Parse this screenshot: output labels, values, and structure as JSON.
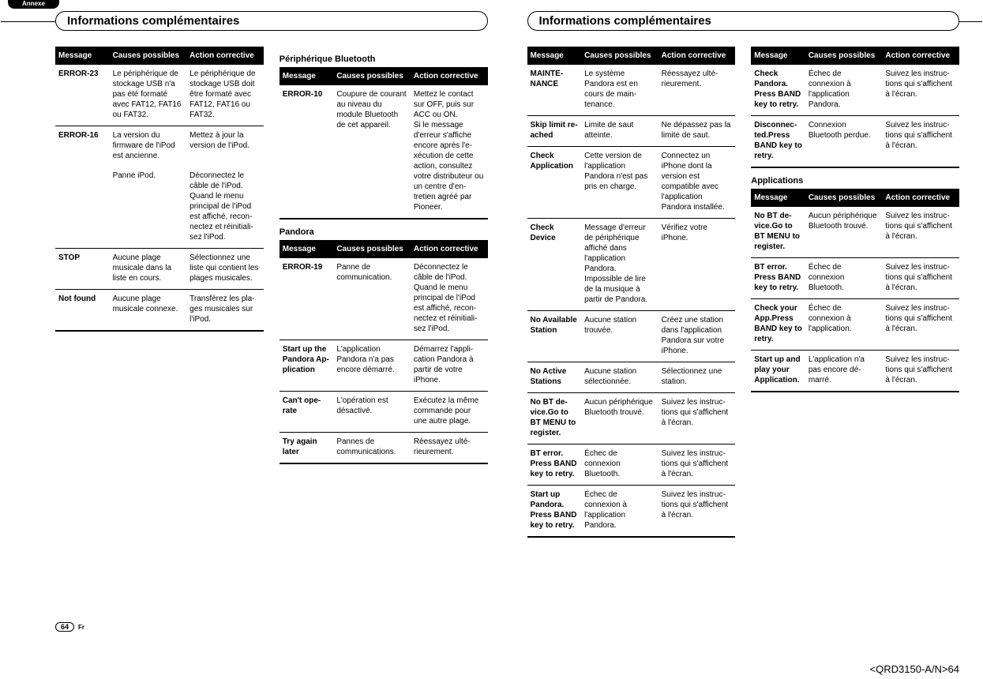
{
  "meta": {
    "annexe": "Annexe",
    "section": "Informations complémentaires",
    "page_no": "64",
    "lang": "Fr",
    "doc_code": "<QRD3150-A/N>64"
  },
  "hdr": {
    "msg": "Message",
    "cause": "Causes possi­bles",
    "action": "Action correc­tive"
  },
  "subs": {
    "bt": "Périphérique Bluetooth",
    "pandora": "Pandora",
    "apps": "Applications"
  },
  "t1": [
    {
      "m": "ERROR-23",
      "c": "Le périphérique de stockage USB n'a pas été formaté avec FAT12, FAT16 ou FAT32.",
      "a": "Le périphérique de stockage USB doit être formaté avec FAT12, FAT16 ou FAT32."
    },
    {
      "m": "ERROR-16",
      "c": "La version du firmware de l'iPod est an­cienne.",
      "a": "Mettez à jour la version de l'iPod.",
      "nb": true
    },
    {
      "m": "",
      "c": "Panne iPod.",
      "a": "Déconnectez le câble de l'iPod. Quand le menu principal de l'iPod est affiché, recon­nectez et réinitiali­sez l'iPod."
    },
    {
      "m": "STOP",
      "c": "Aucune plage musicale dans la liste en cours.",
      "a": "Sélectionnez une liste qui contient les plages musi­cales."
    },
    {
      "m": "Not found",
      "c": "Aucune plage musicale connexe.",
      "a": "Transférez les pla­ges musicales sur l'iPod."
    }
  ],
  "t2": [
    {
      "m": "ERROR-10",
      "c": "Coupure de courant au ni­veau du module Bluetooth de cet appareil.",
      "a": "Mettez le contact sur OFF, puis sur ACC ou ON.\nSi le message d'erreur s'affiche encore après l'e­xécution de cette action, consultez votre distributeur ou un centre d'en­tretien agréé par Pioneer."
    }
  ],
  "t3": [
    {
      "m": "ERROR-19",
      "c": "Panne de communica­tion.",
      "a": "Déconnectez le câble de l'iPod. Quand le menu principal de l'iPod est affiché, recon­nectez et réinitiali­sez l'iPod."
    },
    {
      "m": "Start up the Pandora Ap­plication",
      "c": "L'application Pandora n'a pas encore dé­marré.",
      "a": "Démarrez l'appli­cation Pandora à partir de votre iPhone."
    },
    {
      "m": "Can't ope­rate",
      "c": "L'opération est désactivé.",
      "a": "Exécutez la même commande pour une autre plage."
    },
    {
      "m": "Try again later",
      "c": "Pannes de communica­tions.",
      "a": "Réessayez ulté­rieurement."
    }
  ],
  "t4": [
    {
      "m": "MAINTE­NANCE",
      "c": "Le système Pandora est en cours de main­tenance.",
      "a": "Réessayez ulté­rieurement."
    },
    {
      "m": "Skip limit re­ached",
      "c": "Limite de saut atteinte.",
      "a": "Ne dépassez pas la limite de saut."
    },
    {
      "m": "Check Appli­cation",
      "c": "Cette version de l'application Pandora n'est pas pris en charge.",
      "a": "Connectez un iPhone dont la version est compatible avec l'application Pandora installée."
    },
    {
      "m": "Check Device",
      "c": "Message d'er­reur de périphé­rique affiché dans l'applica­tion Pandora. Impossible de lire de la mu­sique à partir de Pandora.",
      "a": "Vérifiez votre iPhone."
    },
    {
      "m": "No Available Station",
      "c": "Aucune station trouvée.",
      "a": "Créez une station dans l'application Pandora sur votre iPhone."
    },
    {
      "m": "No Active Stations",
      "c": "Aucune station sélectionnée.",
      "a": "Sélectionnez une station."
    },
    {
      "m": "No BT de­vice.Go to BT MENU to re­gister.",
      "c": "Aucun périphé­rique Bluetooth trouvé.",
      "a": "Suivez les instruc­tions qui s'affi­chent à l'écran."
    },
    {
      "m": "BT error. Press BAND key to retry.",
      "c": "Échec de connexion Bluetooth.",
      "a": "Suivez les instruc­tions qui s'affi­chent à l'écran."
    },
    {
      "m": "Start up Pandora. Press BAND key to retry.",
      "c": "Échec de connexion à l'application Pandora.",
      "a": "Suivez les instruc­tions qui s'affi­chent à l'écran."
    }
  ],
  "t5": [
    {
      "m": "Check Pandora. Press BAND key to retry.",
      "c": "Échec de connexion à l'application Pandora.",
      "a": "Suivez les instruc­tions qui s'affi­chent à l'écran."
    },
    {
      "m": "Disconnec­ted.Press BAND key to retry.",
      "c": "Connexion Bluetooth per­due.",
      "a": "Suivez les instruc­tions qui s'affi­chent à l'écran."
    }
  ],
  "t6": [
    {
      "m": "No BT de­vice.Go to BT MENU to re­gister.",
      "c": "Aucun périphé­rique Bluetooth trouvé.",
      "a": "Suivez les instruc­tions qui s'affi­chent à l'écran."
    },
    {
      "m": "BT error. Press BAND key to retry.",
      "c": "Échec de connexion Bluetooth.",
      "a": "Suivez les instruc­tions qui s'affi­chent à l'écran."
    },
    {
      "m": "Check your App.Press BAND key to retry.",
      "c": "Échec de connexion à l'application.",
      "a": "Suivez les instruc­tions qui s'affi­chent à l'écran."
    },
    {
      "m": "Start up and play your Application.",
      "c": "L'application n'a pas encore dé­marré.",
      "a": "Suivez les instruc­tions qui s'affi­chent à l'écran."
    }
  ]
}
